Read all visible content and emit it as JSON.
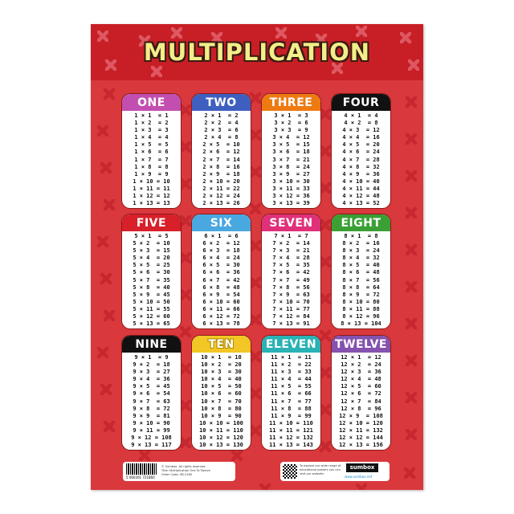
{
  "poster": {
    "title": "MULTIPLICATION",
    "background_color": "#d9383c",
    "header_color": "#c81f26",
    "title_color": "#f2ee8a"
  },
  "tables": [
    {
      "label": "ONE",
      "color": "#c24fb0",
      "rows": [
        "1 × 1  = 1",
        "1 × 2  = 2",
        "1 × 3  = 3",
        "1 × 4  = 4",
        "1 × 5  = 5",
        "1 × 6  = 6",
        "1 × 7  = 7",
        "1 × 8  = 8",
        "1 × 9  = 9",
        "1 × 10 = 10",
        "1 × 11 = 11",
        "1 × 12 = 12",
        "1 × 13 = 13"
      ]
    },
    {
      "label": "TWO",
      "color": "#3f5fc0",
      "rows": [
        "2 × 1  = 2",
        "2 × 2  = 4",
        "2 × 3  = 6",
        "2 × 4  = 8",
        "2 × 5  = 10",
        "2 × 6  = 12",
        "2 × 7  = 14",
        "2 × 8  = 16",
        "2 × 9  = 18",
        "2 × 10 = 20",
        "2 × 11 = 22",
        "2 × 12 = 24",
        "2 × 13 = 26"
      ]
    },
    {
      "label": "THREE",
      "color": "#ee7a12",
      "rows": [
        "3 × 1  = 3",
        "3 × 2  = 6",
        "3 × 3  = 9",
        "3 × 4  = 12",
        "3 × 5  = 15",
        "3 × 6  = 18",
        "3 × 7  = 21",
        "3 × 8  = 24",
        "3 × 9  = 27",
        "3 × 10 = 30",
        "3 × 11 = 33",
        "3 × 12 = 36",
        "3 × 13 = 39"
      ]
    },
    {
      "label": "FOUR",
      "color": "#111111",
      "rows": [
        "4 × 1  = 4",
        "4 × 2  = 8",
        "4 × 3  = 12",
        "4 × 4  = 16",
        "4 × 5  = 20",
        "4 × 6  = 24",
        "4 × 7  = 28",
        "4 × 8  = 32",
        "4 × 9  = 36",
        "4 × 10 = 40",
        "4 × 11 = 44",
        "4 × 12 = 48",
        "4 × 13 = 52"
      ]
    },
    {
      "label": "FIVE",
      "color": "#d8202a",
      "rows": [
        "5 × 1  = 5",
        "5 × 2  = 10",
        "5 × 3  = 15",
        "5 × 4  = 20",
        "5 × 5  = 25",
        "5 × 6  = 30",
        "5 × 7  = 35",
        "5 × 8  = 40",
        "5 × 9  = 45",
        "5 × 10 = 50",
        "5 × 11 = 55",
        "5 × 12 = 60",
        "5 × 13 = 65"
      ]
    },
    {
      "label": "SIX",
      "color": "#4aa8e0",
      "rows": [
        "6 × 1  = 6",
        "6 × 2  = 12",
        "6 × 3  = 18",
        "6 × 4  = 24",
        "6 × 5  = 30",
        "6 × 6  = 36",
        "6 × 7  = 42",
        "6 × 8  = 48",
        "6 × 9  = 54",
        "6 × 10 = 60",
        "6 × 11 = 66",
        "6 × 12 = 72",
        "6 × 13 = 78"
      ]
    },
    {
      "label": "SEVEN",
      "color": "#e0307a",
      "rows": [
        "7 × 1  = 7",
        "7 × 2  = 14",
        "7 × 3  = 21",
        "7 × 4  = 28",
        "7 × 5  = 35",
        "7 × 6  = 42",
        "7 × 7  = 49",
        "7 × 8  = 56",
        "7 × 9  = 63",
        "7 × 10 = 70",
        "7 × 11 = 77",
        "7 × 12 = 84",
        "7 × 13 = 91"
      ]
    },
    {
      "label": "EIGHT",
      "color": "#3aa034",
      "rows": [
        "8 × 1  = 8",
        "8 × 2  = 16",
        "8 × 3  = 24",
        "8 × 4  = 32",
        "8 × 5  = 40",
        "8 × 6  = 48",
        "8 × 7  = 56",
        "8 × 8  = 64",
        "8 × 9  = 72",
        "8 × 10 = 80",
        "8 × 11 = 88",
        "8 × 12 = 96",
        "8 × 13 = 104"
      ]
    },
    {
      "label": "NINE",
      "color": "#111111",
      "rows": [
        "9 × 1  = 9",
        "9 × 2  = 18",
        "9 × 3  = 27",
        "9 × 4  = 36",
        "9 × 5  = 45",
        "9 × 6  = 54",
        "9 × 7  = 63",
        "9 × 8  = 72",
        "9 × 9  = 81",
        "9 × 10 = 90",
        "9 × 11 = 99",
        "9 × 12 = 108",
        "9 × 13 = 117"
      ]
    },
    {
      "label": "TEN",
      "color": "#f2c624",
      "rows": [
        "10 × 1  = 10",
        "10 × 2  = 20",
        "10 × 3  = 30",
        "10 × 4  = 40",
        "10 × 5  = 50",
        "10 × 6  = 60",
        "10 × 7  = 70",
        "10 × 8  = 80",
        "10 × 9  = 90",
        "10 × 10 = 100",
        "10 × 11 = 110",
        "10 × 12 = 120",
        "10 × 13 = 130"
      ]
    },
    {
      "label": "ELEVEN",
      "color": "#2ab2b4",
      "rows": [
        "11 × 1  = 11",
        "11 × 2  = 22",
        "11 × 3  = 33",
        "11 × 4  = 44",
        "11 × 5  = 55",
        "11 × 6  = 66",
        "11 × 7  = 77",
        "11 × 8  = 88",
        "11 × 9  = 99",
        "11 × 10 = 110",
        "11 × 11 = 121",
        "11 × 12 = 132",
        "11 × 13 = 143"
      ]
    },
    {
      "label": "TWELVE",
      "color": "#8552ae",
      "rows": [
        "12 × 1  = 12",
        "12 × 2  = 24",
        "12 × 3  = 36",
        "12 × 4  = 48",
        "12 × 5  = 60",
        "12 × 6  = 72",
        "12 × 7  = 84",
        "12 × 8  = 96",
        "12 × 9  = 108",
        "12 × 10 = 120",
        "12 × 11 = 132",
        "12 × 12 = 144",
        "12 × 13 = 156"
      ]
    }
  ],
  "footer": {
    "barcode_number": "5 060201 721860",
    "copyright": "© Sumbox. All rights reserved.",
    "product_title": "Title: Multiplication One To Twelve",
    "order_code": "Order Code: SB-2180",
    "explore_text": "To explore our wide range of educational posters you can visit our website:",
    "brand": "sumbox",
    "website": "www.sumbox.net"
  }
}
